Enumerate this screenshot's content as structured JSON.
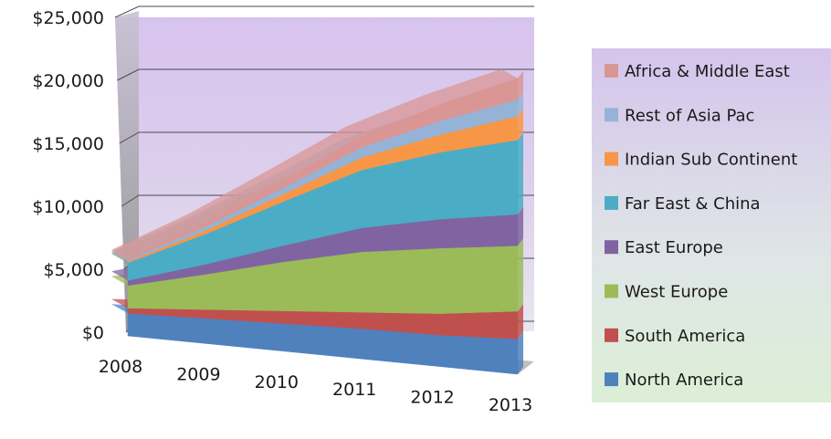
{
  "chart_data": {
    "type": "area",
    "stacked": true,
    "three_d": true,
    "title": "",
    "xlabel": "",
    "ylabel": "",
    "categories": [
      "2008",
      "2009",
      "2010",
      "2011",
      "2012",
      "2013"
    ],
    "ylim": [
      0,
      25000
    ],
    "yticks": [
      0,
      5000,
      10000,
      15000,
      20000,
      25000
    ],
    "ytick_labels": [
      "$0",
      "$5,000",
      "$10,000",
      "$15,000",
      "$20,000",
      "$25,000"
    ],
    "grid": true,
    "legend_position": "right",
    "series": [
      {
        "name": "North America",
        "color": "#4F81BD",
        "values": [
          1800,
          2000,
          2200,
          2400,
          2500,
          2800
        ]
      },
      {
        "name": "South America",
        "color": "#C0504D",
        "values": [
          400,
          700,
          1000,
          1300,
          1700,
          2200
        ]
      },
      {
        "name": "West Europe",
        "color": "#9BBB59",
        "values": [
          1800,
          2800,
          3900,
          4800,
          5200,
          5200
        ]
      },
      {
        "name": "East Europe",
        "color": "#8064A2",
        "values": [
          400,
          800,
          1300,
          1900,
          2300,
          2500
        ]
      },
      {
        "name": "Far East & China",
        "color": "#4BACC6",
        "values": [
          1400,
          2400,
          3500,
          4600,
          5300,
          5900
        ]
      },
      {
        "name": "Indian Sub Continent",
        "color": "#F79646",
        "values": [
          100,
          300,
          600,
          1000,
          1400,
          1900
        ]
      },
      {
        "name": "Rest of Asia Pac",
        "color": "#95B3D7",
        "values": [
          100,
          300,
          500,
          800,
          1100,
          1300
        ]
      },
      {
        "name": "Africa & Middle East",
        "color": "#D99694",
        "values": [
          100,
          300,
          600,
          900,
          1300,
          1700
        ]
      }
    ]
  }
}
